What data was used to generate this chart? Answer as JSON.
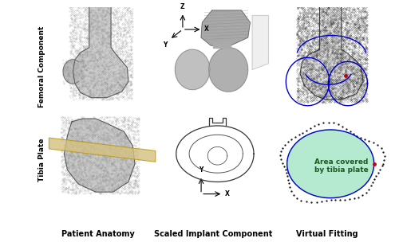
{
  "figsize": [
    5.0,
    3.09
  ],
  "dpi": 100,
  "background": "#ffffff",
  "row_labels": [
    "Femoral Component",
    "Tibia Plate"
  ],
  "col_labels": [
    "Patient Anatomy",
    "Scaled Implant Component",
    "Virtual Fitting"
  ],
  "row_label_fontsize": 6.5,
  "col_label_fontsize": 7.0,
  "annotation_text": "Area covered\nby tibia plate",
  "annotation_fontsize": 6.5,
  "annotation_color": "#1a5c1a",
  "red_dot_color": "#cc0000",
  "blue_line_color": "#0000cc",
  "green_fill_color": "#a8e6c8",
  "tibia_plate_color": "#d4c080",
  "mesh_color_femur": "#888888",
  "mesh_color_dark": "#222222",
  "implant_gray": "#b8b8b8",
  "implant_light": "#d8d8d8"
}
